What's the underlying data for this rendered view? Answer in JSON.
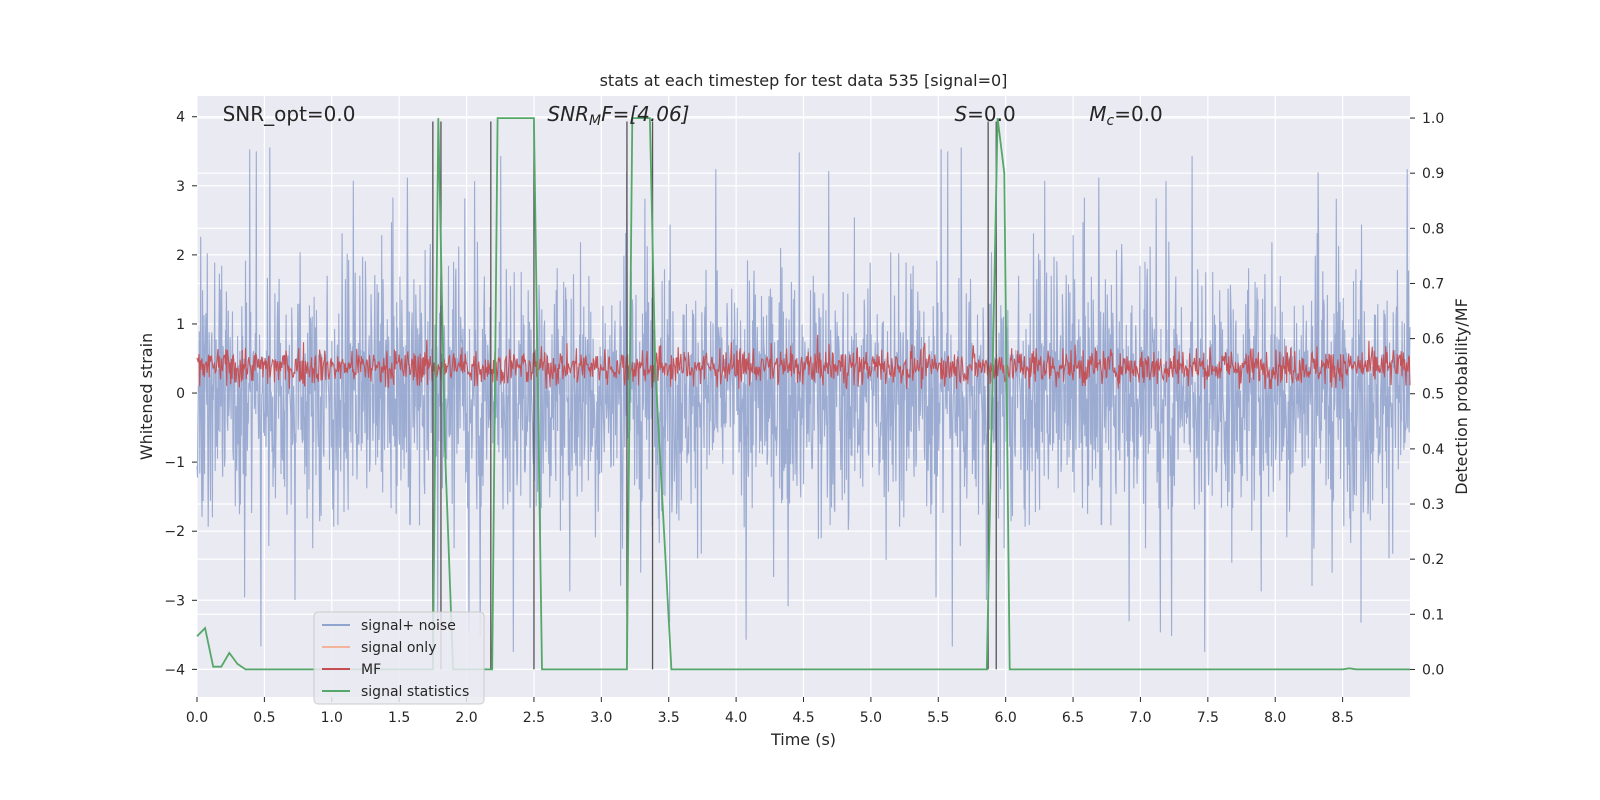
{
  "chart_data": {
    "type": "line",
    "title": "stats at each timestep for test data 535 [signal=0]",
    "xlabel": "Time (s)",
    "ylabel": "Whitened strain",
    "y2label": "Detection probability/MF",
    "xlim": [
      0,
      9.0
    ],
    "ylim": [
      -4.4,
      4.3
    ],
    "y2lim": [
      -0.05,
      1.04
    ],
    "x_ticks": [
      "0.0",
      "0.5",
      "1.0",
      "1.5",
      "2.0",
      "2.5",
      "3.0",
      "3.5",
      "4.0",
      "4.5",
      "5.0",
      "5.5",
      "6.0",
      "6.5",
      "7.0",
      "7.5",
      "8.0",
      "8.5"
    ],
    "y_ticks": [
      "4",
      "3",
      "2",
      "1",
      "0",
      "−1",
      "−2",
      "−3",
      "−4"
    ],
    "y_tick_values": [
      4,
      3,
      2,
      1,
      0,
      -1,
      -2,
      -3,
      -4
    ],
    "y2_ticks": [
      "1.0",
      "0.9",
      "0.8",
      "0.7",
      "0.6",
      "0.5",
      "0.4",
      "0.3",
      "0.2",
      "0.1",
      "0.0"
    ],
    "y2_tick_values": [
      1.0,
      0.9,
      0.8,
      0.7,
      0.6,
      0.5,
      0.4,
      0.3,
      0.2,
      0.1,
      0.0
    ],
    "grid": true,
    "legend_position": "lower-left",
    "annotations": {
      "snr_opt": "SNR_opt=0.0",
      "snr_mf_sym": "SNR",
      "snr_mf_sub": "M",
      "snr_mf_rest": "F=[4.06]",
      "s_sym": "S",
      "s_rest": "=0.0",
      "mc_sym": "M",
      "mc_sub": "c",
      "mc_rest": "=0.0"
    },
    "noise": {
      "typical_amplitude": 1.6,
      "max_amplitude": 3.9,
      "color": "#8da0cb"
    },
    "mf": {
      "center": 0.38,
      "amplitude": 0.3,
      "color": "#c44e52"
    },
    "series": [
      {
        "name": "signal+ noise",
        "color": "#8fa5cf"
      },
      {
        "name": "signal only",
        "color": "#f2b59b"
      },
      {
        "name": "MF",
        "color": "#c44e52"
      },
      {
        "name": "signal statistics",
        "color": "#55a868",
        "x": [
          0.0,
          0.06,
          0.12,
          0.18,
          0.24,
          0.3,
          0.36,
          0.42,
          1.0,
          1.5,
          1.73,
          1.75,
          1.79,
          1.84,
          1.9,
          1.96,
          2.0,
          2.1,
          2.19,
          2.23,
          2.3,
          2.4,
          2.5,
          2.56,
          2.65,
          2.8,
          3.0,
          3.19,
          3.23,
          3.3,
          3.36,
          3.4,
          3.52,
          4.0,
          5.0,
          5.86,
          5.9,
          5.94,
          5.99,
          6.03,
          6.07,
          6.5,
          7.0,
          8.0,
          8.5,
          8.55,
          8.6,
          9.0
        ],
        "y": [
          0.06,
          0.075,
          0.005,
          0.005,
          0.03,
          0.01,
          0.0,
          0.0,
          0.0,
          0.0,
          0.0,
          0.0,
          1.0,
          0.4,
          0.0,
          0.0,
          0.0,
          0.0,
          0.0,
          1.0,
          1.0,
          1.0,
          1.0,
          0.0,
          0.0,
          0.0,
          0.0,
          0.0,
          1.0,
          1.0,
          1.0,
          0.55,
          0.0,
          0.0,
          0.0,
          0.0,
          0.5,
          1.0,
          0.9,
          0.0,
          0.0,
          0.0,
          0.0,
          0.0,
          0.0,
          0.002,
          0.0,
          0.0
        ]
      }
    ],
    "vertical_markers": [
      {
        "x": 1.75,
        "y_top": 3.93
      },
      {
        "x": 1.81,
        "y_top": 3.93
      },
      {
        "x": 2.18,
        "y_top": 3.93
      },
      {
        "x": 2.5,
        "y_top": 3.93
      },
      {
        "x": 3.19,
        "y_top": 3.93
      },
      {
        "x": 3.38,
        "y_top": 3.93
      },
      {
        "x": 5.87,
        "y_top": 3.93
      },
      {
        "x": 5.93,
        "y_top": 3.93
      }
    ]
  }
}
